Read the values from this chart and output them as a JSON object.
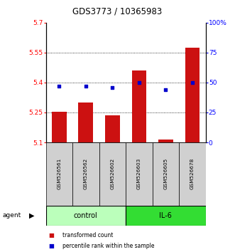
{
  "title": "GDS3773 / 10365983",
  "samples": [
    "GSM526561",
    "GSM526562",
    "GSM526602",
    "GSM526603",
    "GSM526605",
    "GSM526678"
  ],
  "groups": [
    "control",
    "control",
    "control",
    "IL-6",
    "IL-6",
    "IL-6"
  ],
  "bar_values": [
    5.255,
    5.3,
    5.235,
    5.46,
    5.115,
    5.575
  ],
  "dot_values": [
    47,
    47,
    46,
    50,
    44,
    50
  ],
  "ylim_left": [
    5.1,
    5.7
  ],
  "ylim_right": [
    0,
    100
  ],
  "yticks_left": [
    5.1,
    5.25,
    5.4,
    5.55,
    5.7
  ],
  "yticks_right": [
    0,
    25,
    50,
    75,
    100
  ],
  "ytick_labels_left": [
    "5.1",
    "5.25",
    "5.4",
    "5.55",
    "5.7"
  ],
  "ytick_labels_right": [
    "0",
    "25",
    "50",
    "75",
    "100%"
  ],
  "hlines": [
    5.25,
    5.4,
    5.55
  ],
  "bar_color": "#cc1111",
  "dot_color": "#0000cc",
  "group_colors": {
    "control": "#bbffbb",
    "IL-6": "#33dd33"
  },
  "control_label": "control",
  "il6_label": "IL-6",
  "agent_label": "agent",
  "legend_bar": "transformed count",
  "legend_dot": "percentile rank within the sample",
  "bar_width": 0.55,
  "sample_box_color": "#d0d0d0"
}
